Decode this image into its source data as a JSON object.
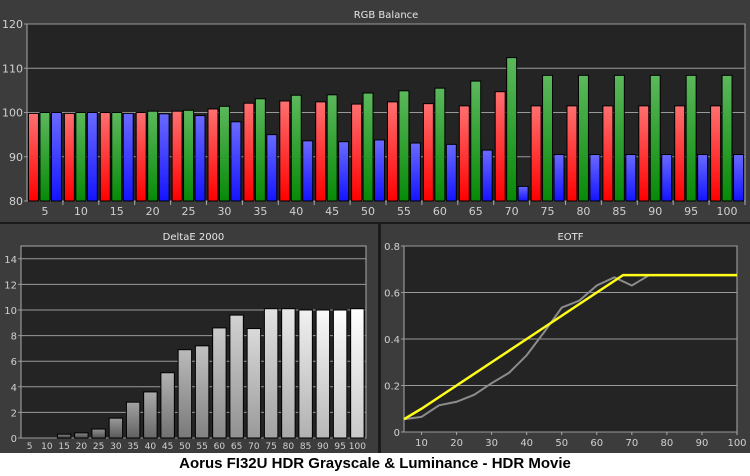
{
  "caption": "Aorus FI32U HDR Grayscale & Luminance - HDR Movie",
  "colors": {
    "panel_bg": "#3c3c3c",
    "plot_bg": "#242424",
    "grid": "#9a9a9a",
    "red": "#ff2a2a",
    "green": "#1f9a2a",
    "blue": "#2a2aff",
    "target": "#ffff1a",
    "measured": "#8c8c8c"
  },
  "chart_data": [
    {
      "type": "bar",
      "title": "RGB Balance",
      "categories": [
        "5",
        "10",
        "15",
        "20",
        "25",
        "30",
        "35",
        "40",
        "45",
        "50",
        "55",
        "60",
        "65",
        "70",
        "75",
        "80",
        "85",
        "90",
        "95",
        "100"
      ],
      "ylim": [
        80,
        120
      ],
      "yticks": [
        "80",
        "90",
        "100",
        "110",
        "120"
      ],
      "grid": true,
      "series": [
        {
          "color": "red",
          "values": [
            99.8,
            99.8,
            100,
            100,
            100.3,
            100.8,
            102.1,
            102.6,
            102.4,
            101.9,
            102.4,
            102.0,
            101.5,
            104.7,
            101.5,
            101.5,
            101.5,
            101.5,
            101.5,
            101.5
          ]
        },
        {
          "color": "green",
          "values": [
            100,
            100,
            100,
            100.3,
            100.5,
            101.4,
            103.1,
            103.9,
            104.0,
            104.4,
            104.9,
            105.5,
            107.1,
            112.4,
            108.4,
            108.4,
            108.4,
            108.4,
            108.4,
            108.4
          ]
        },
        {
          "color": "blue",
          "values": [
            100,
            100,
            99.8,
            99.7,
            99.3,
            97.9,
            95.0,
            93.6,
            93.4,
            93.8,
            93.1,
            92.8,
            91.5,
            83.3,
            90.5,
            90.5,
            90.5,
            90.5,
            90.5,
            90.5
          ]
        }
      ]
    },
    {
      "type": "bar",
      "title": "DeltaE 2000",
      "categories": [
        "5",
        "10",
        "15",
        "20",
        "25",
        "30",
        "35",
        "40",
        "45",
        "50",
        "55",
        "60",
        "65",
        "70",
        "75",
        "80",
        "85",
        "90",
        "95",
        "100"
      ],
      "ylim": [
        0,
        15
      ],
      "yticks": [
        "0",
        "2",
        "4",
        "6",
        "8",
        "10",
        "12",
        "14"
      ],
      "grid": true,
      "values": [
        0.0,
        0.0,
        0.3,
        0.4,
        0.7,
        1.55,
        2.8,
        3.6,
        5.1,
        6.9,
        7.2,
        8.6,
        9.6,
        8.55,
        10.1,
        10.1,
        10.0,
        10.0,
        10.0,
        10.1
      ]
    },
    {
      "type": "line",
      "title": "EOTF",
      "xlim": [
        5,
        100
      ],
      "ylim": [
        0,
        0.8
      ],
      "xticks": [
        "10",
        "20",
        "30",
        "40",
        "50",
        "60",
        "70",
        "80",
        "90",
        "100"
      ],
      "yticks": [
        "0",
        "0.2",
        "0.4",
        "0.6",
        "0.8"
      ],
      "grid": true,
      "series": [
        {
          "color": "measured",
          "x": [
            5,
            10,
            15,
            20,
            25,
            30,
            35,
            40,
            45,
            50,
            55,
            60,
            65,
            70,
            75,
            80,
            85,
            90,
            95,
            100
          ],
          "y": [
            0.055,
            0.065,
            0.115,
            0.13,
            0.16,
            0.21,
            0.255,
            0.33,
            0.43,
            0.535,
            0.565,
            0.63,
            0.665,
            0.63,
            0.675,
            0.675,
            0.675,
            0.675,
            0.675,
            0.675
          ]
        },
        {
          "color": "target",
          "x": [
            5,
            10,
            20,
            30,
            40,
            50,
            60,
            67.5,
            100
          ],
          "y": [
            0.055,
            0.1,
            0.2,
            0.3,
            0.4,
            0.5,
            0.6,
            0.675,
            0.675
          ]
        }
      ]
    }
  ]
}
